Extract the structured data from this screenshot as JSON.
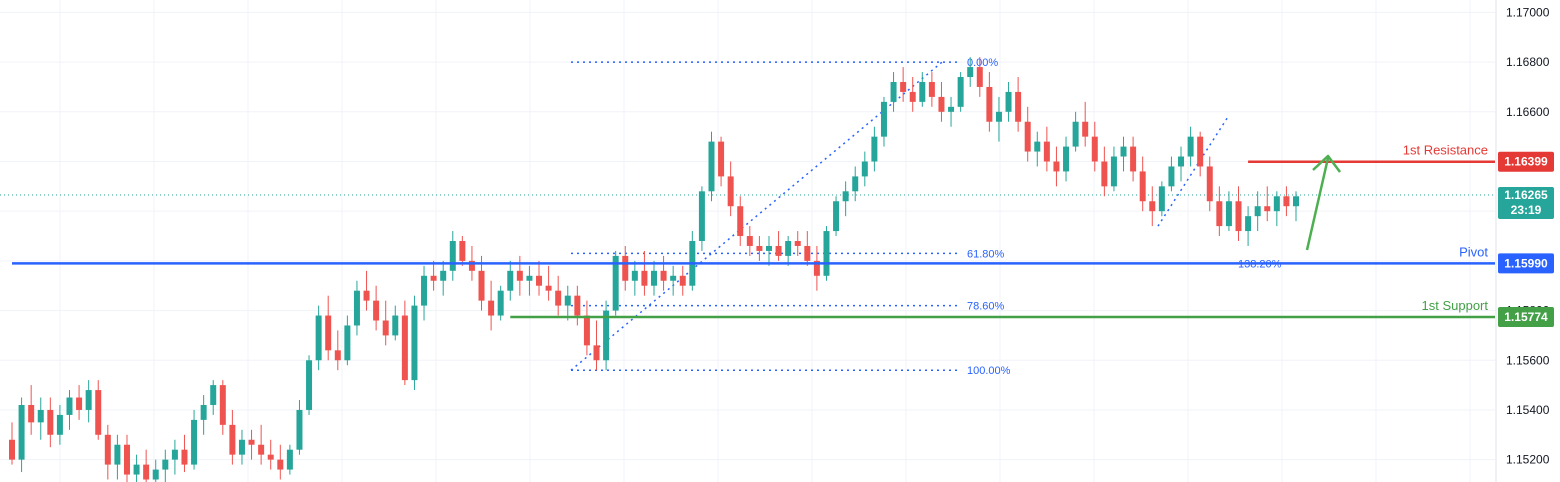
{
  "chart_data": {
    "type": "candlestick",
    "y_axis": {
      "ticks": [
        "1.17000",
        "1.16800",
        "1.16600",
        "1.16400",
        "1.16200",
        "1.16000",
        "1.15800",
        "1.15600",
        "1.15400",
        "1.15200"
      ],
      "tick_values": [
        1.17,
        1.168,
        1.166,
        1.164,
        1.162,
        1.16,
        1.158,
        1.156,
        1.154,
        1.152
      ],
      "ylim": [
        1.1511,
        1.1705
      ]
    },
    "grid": true,
    "current_price": {
      "value": "1.16265",
      "countdown": "23:19",
      "color": "#26a69a"
    },
    "levels": [
      {
        "name": "1st Resistance",
        "value": 1.16399,
        "value_label": "1.16399",
        "color": "#e53935",
        "start_index": 129
      },
      {
        "name": "Pivot",
        "value": 1.1599,
        "value_label": "1.15990",
        "color": "#2962ff",
        "start_index": 0
      },
      {
        "name": "1st Support",
        "value": 1.15774,
        "value_label": "1.15774",
        "color": "#43a047",
        "start_index": 52
      }
    ],
    "fibonacci": {
      "color": "#2962ff",
      "levels": [
        {
          "label": "0.00%",
          "value": 1.168
        },
        {
          "label": "61.80%",
          "value": 1.1603
        },
        {
          "label": "78.60%",
          "value": 1.1582
        },
        {
          "label": "100.00%",
          "value": 1.1556
        }
      ]
    },
    "extension_label": "138.20%",
    "candles_ohlc": [
      [
        1.1528,
        1.1535,
        1.1518,
        1.152
      ],
      [
        1.152,
        1.1545,
        1.1515,
        1.1542
      ],
      [
        1.1542,
        1.155,
        1.153,
        1.1535
      ],
      [
        1.1535,
        1.1545,
        1.1528,
        1.154
      ],
      [
        1.154,
        1.1545,
        1.1525,
        1.153
      ],
      [
        1.153,
        1.1542,
        1.1526,
        1.1538
      ],
      [
        1.1538,
        1.1548,
        1.1532,
        1.1545
      ],
      [
        1.1545,
        1.155,
        1.1536,
        1.154
      ],
      [
        1.154,
        1.1552,
        1.1535,
        1.1548
      ],
      [
        1.1548,
        1.1552,
        1.1528,
        1.153
      ],
      [
        1.153,
        1.1534,
        1.1512,
        1.1518
      ],
      [
        1.1518,
        1.153,
        1.1512,
        1.1526
      ],
      [
        1.1526,
        1.153,
        1.151,
        1.1514
      ],
      [
        1.1514,
        1.1522,
        1.1506,
        1.1518
      ],
      [
        1.1518,
        1.1524,
        1.1508,
        1.1512
      ],
      [
        1.1512,
        1.152,
        1.1508,
        1.1516
      ],
      [
        1.1516,
        1.1524,
        1.151,
        1.152
      ],
      [
        1.152,
        1.1528,
        1.1514,
        1.1524
      ],
      [
        1.1524,
        1.153,
        1.1515,
        1.1518
      ],
      [
        1.1518,
        1.154,
        1.1516,
        1.1536
      ],
      [
        1.1536,
        1.1546,
        1.153,
        1.1542
      ],
      [
        1.1542,
        1.1552,
        1.1538,
        1.155
      ],
      [
        1.155,
        1.1552,
        1.153,
        1.1534
      ],
      [
        1.1534,
        1.154,
        1.1518,
        1.1522
      ],
      [
        1.1522,
        1.1532,
        1.1518,
        1.1528
      ],
      [
        1.1528,
        1.1532,
        1.152,
        1.1526
      ],
      [
        1.1526,
        1.1534,
        1.1518,
        1.1522
      ],
      [
        1.1522,
        1.1528,
        1.1516,
        1.152
      ],
      [
        1.152,
        1.1526,
        1.1512,
        1.1516
      ],
      [
        1.1516,
        1.1526,
        1.1514,
        1.1524
      ],
      [
        1.1524,
        1.1544,
        1.1522,
        1.154
      ],
      [
        1.154,
        1.1562,
        1.1538,
        1.156
      ],
      [
        1.156,
        1.1582,
        1.1556,
        1.1578
      ],
      [
        1.1578,
        1.1586,
        1.156,
        1.1564
      ],
      [
        1.1564,
        1.1572,
        1.1556,
        1.156
      ],
      [
        1.156,
        1.1578,
        1.1558,
        1.1574
      ],
      [
        1.1574,
        1.1592,
        1.157,
        1.1588
      ],
      [
        1.1588,
        1.1596,
        1.158,
        1.1584
      ],
      [
        1.1584,
        1.159,
        1.1572,
        1.1576
      ],
      [
        1.1576,
        1.1584,
        1.1566,
        1.157
      ],
      [
        1.157,
        1.1582,
        1.1568,
        1.1578
      ],
      [
        1.1578,
        1.1584,
        1.155,
        1.1552
      ],
      [
        1.1552,
        1.1586,
        1.1548,
        1.1582
      ],
      [
        1.1582,
        1.1598,
        1.1576,
        1.1594
      ],
      [
        1.1594,
        1.16,
        1.1588,
        1.1592
      ],
      [
        1.1592,
        1.16,
        1.1586,
        1.1596
      ],
      [
        1.1596,
        1.1612,
        1.1592,
        1.1608
      ],
      [
        1.1608,
        1.161,
        1.1598,
        1.16
      ],
      [
        1.16,
        1.1606,
        1.1592,
        1.1596
      ],
      [
        1.1596,
        1.1602,
        1.158,
        1.1584
      ],
      [
        1.1584,
        1.1592,
        1.1572,
        1.1578
      ],
      [
        1.1578,
        1.159,
        1.1576,
        1.1588
      ],
      [
        1.1588,
        1.16,
        1.1584,
        1.1596
      ],
      [
        1.1596,
        1.1602,
        1.1586,
        1.1592
      ],
      [
        1.1592,
        1.1598,
        1.1586,
        1.1594
      ],
      [
        1.1594,
        1.16,
        1.1586,
        1.159
      ],
      [
        1.159,
        1.1598,
        1.1584,
        1.1588
      ],
      [
        1.1588,
        1.1594,
        1.1578,
        1.1582
      ],
      [
        1.1582,
        1.159,
        1.1576,
        1.1586
      ],
      [
        1.1586,
        1.159,
        1.1574,
        1.1578
      ],
      [
        1.1578,
        1.1584,
        1.1562,
        1.1566
      ],
      [
        1.1566,
        1.1576,
        1.1556,
        1.156
      ],
      [
        1.156,
        1.1584,
        1.1556,
        1.158
      ],
      [
        1.158,
        1.1604,
        1.1578,
        1.1602
      ],
      [
        1.1602,
        1.1606,
        1.1588,
        1.1592
      ],
      [
        1.1592,
        1.16,
        1.1586,
        1.1596
      ],
      [
        1.1596,
        1.1604,
        1.1586,
        1.159
      ],
      [
        1.159,
        1.16,
        1.1586,
        1.1596
      ],
      [
        1.1596,
        1.1602,
        1.1588,
        1.1592
      ],
      [
        1.1592,
        1.1598,
        1.1586,
        1.1594
      ],
      [
        1.1594,
        1.1598,
        1.1586,
        1.159
      ],
      [
        1.159,
        1.1612,
        1.1588,
        1.1608
      ],
      [
        1.1608,
        1.163,
        1.1604,
        1.1628
      ],
      [
        1.1628,
        1.1652,
        1.1624,
        1.1648
      ],
      [
        1.1648,
        1.165,
        1.163,
        1.1634
      ],
      [
        1.1634,
        1.164,
        1.1618,
        1.1622
      ],
      [
        1.1622,
        1.1626,
        1.1606,
        1.161
      ],
      [
        1.161,
        1.1614,
        1.1602,
        1.1606
      ],
      [
        1.1606,
        1.161,
        1.16,
        1.1604
      ],
      [
        1.1604,
        1.161,
        1.1598,
        1.1606
      ],
      [
        1.1606,
        1.1612,
        1.16,
        1.1602
      ],
      [
        1.1602,
        1.161,
        1.1598,
        1.1608
      ],
      [
        1.1608,
        1.1612,
        1.1602,
        1.1606
      ],
      [
        1.1606,
        1.1612,
        1.1598,
        1.16
      ],
      [
        1.16,
        1.1606,
        1.1588,
        1.1594
      ],
      [
        1.1594,
        1.1614,
        1.1592,
        1.1612
      ],
      [
        1.1612,
        1.1626,
        1.161,
        1.1624
      ],
      [
        1.1624,
        1.1632,
        1.1618,
        1.1628
      ],
      [
        1.1628,
        1.1638,
        1.1624,
        1.1634
      ],
      [
        1.1634,
        1.1644,
        1.163,
        1.164
      ],
      [
        1.164,
        1.1654,
        1.1636,
        1.165
      ],
      [
        1.165,
        1.1666,
        1.1646,
        1.1664
      ],
      [
        1.1664,
        1.1676,
        1.166,
        1.1672
      ],
      [
        1.1672,
        1.1678,
        1.1664,
        1.1668
      ],
      [
        1.1668,
        1.1674,
        1.166,
        1.1664
      ],
      [
        1.1664,
        1.1676,
        1.1662,
        1.1672
      ],
      [
        1.1672,
        1.1676,
        1.1662,
        1.1666
      ],
      [
        1.1666,
        1.1672,
        1.1656,
        1.166
      ],
      [
        1.166,
        1.1666,
        1.1654,
        1.1662
      ],
      [
        1.1662,
        1.1676,
        1.166,
        1.1674
      ],
      [
        1.1674,
        1.1682,
        1.167,
        1.1678
      ],
      [
        1.1678,
        1.1682,
        1.1666,
        1.167
      ],
      [
        1.167,
        1.1676,
        1.1652,
        1.1656
      ],
      [
        1.1656,
        1.1666,
        1.1648,
        1.166
      ],
      [
        1.166,
        1.1672,
        1.1656,
        1.1668
      ],
      [
        1.1668,
        1.1674,
        1.1652,
        1.1656
      ],
      [
        1.1656,
        1.1662,
        1.164,
        1.1644
      ],
      [
        1.1644,
        1.1652,
        1.1638,
        1.1648
      ],
      [
        1.1648,
        1.1654,
        1.1636,
        1.164
      ],
      [
        1.164,
        1.1646,
        1.163,
        1.1636
      ],
      [
        1.1636,
        1.165,
        1.1632,
        1.1646
      ],
      [
        1.1646,
        1.166,
        1.1644,
        1.1656
      ],
      [
        1.1656,
        1.1664,
        1.1646,
        1.165
      ],
      [
        1.165,
        1.1656,
        1.1636,
        1.164
      ],
      [
        1.164,
        1.1646,
        1.1626,
        1.163
      ],
      [
        1.163,
        1.1646,
        1.1628,
        1.1642
      ],
      [
        1.1642,
        1.165,
        1.1636,
        1.1646
      ],
      [
        1.1646,
        1.165,
        1.1632,
        1.1636
      ],
      [
        1.1636,
        1.1642,
        1.162,
        1.1624
      ],
      [
        1.1624,
        1.163,
        1.1614,
        1.162
      ],
      [
        1.162,
        1.1632,
        1.1618,
        1.163
      ],
      [
        1.163,
        1.1642,
        1.1628,
        1.1638
      ],
      [
        1.1638,
        1.1646,
        1.1632,
        1.1642
      ],
      [
        1.1642,
        1.1654,
        1.1638,
        1.165
      ],
      [
        1.165,
        1.1652,
        1.1634,
        1.1638
      ],
      [
        1.1638,
        1.1642,
        1.162,
        1.1624
      ],
      [
        1.1624,
        1.163,
        1.161,
        1.1614
      ],
      [
        1.1614,
        1.1628,
        1.1612,
        1.1624
      ],
      [
        1.1624,
        1.163,
        1.1608,
        1.1612
      ],
      [
        1.1612,
        1.1622,
        1.1606,
        1.1618
      ],
      [
        1.1618,
        1.1628,
        1.1612,
        1.1622
      ],
      [
        1.1622,
        1.163,
        1.1616,
        1.162
      ],
      [
        1.162,
        1.1628,
        1.1614,
        1.1626
      ],
      [
        1.1626,
        1.163,
        1.1618,
        1.1622
      ],
      [
        1.1622,
        1.1628,
        1.1616,
        1.1626
      ]
    ]
  }
}
